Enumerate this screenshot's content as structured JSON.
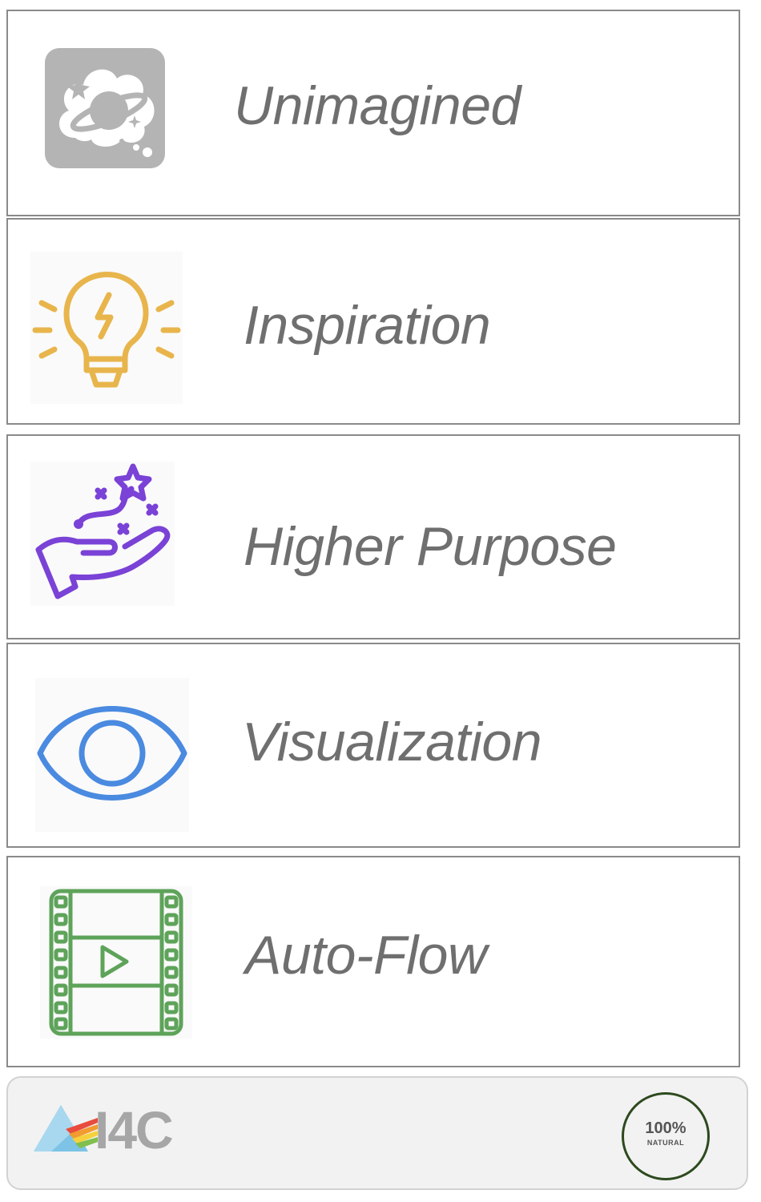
{
  "items": [
    {
      "label": "Unimagined",
      "icon": "planet-cloud-icon",
      "color": "#b4b4b4"
    },
    {
      "label": "Inspiration",
      "icon": "lightbulb-icon",
      "color": "#e8b54c"
    },
    {
      "label": "Higher Purpose",
      "icon": "hand-stars-icon",
      "color": "#7a42d6"
    },
    {
      "label": "Visualization",
      "icon": "eye-icon",
      "color": "#4a8ae0"
    },
    {
      "label": "Auto-Flow",
      "icon": "film-play-icon",
      "color": "#5ea35a"
    }
  ],
  "footer": {
    "logo_text": "I4C",
    "seal_text": "100%",
    "seal_subtext": "NATURAL"
  }
}
